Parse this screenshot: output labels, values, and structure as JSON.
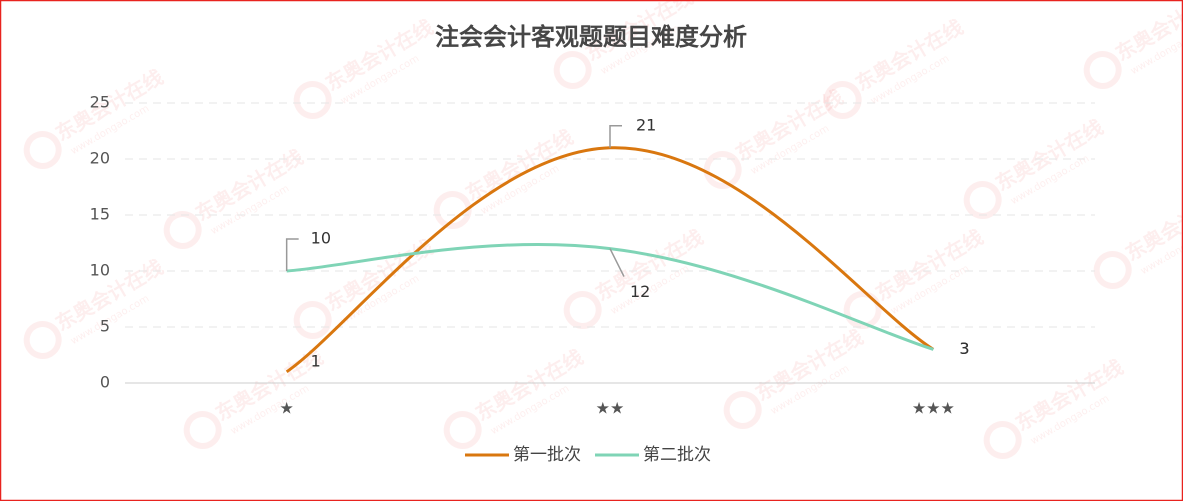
{
  "chart_data": {
    "type": "line",
    "title": "注会会计客观题题目难度分析",
    "categories": [
      "★",
      "★★",
      "★★★"
    ],
    "series": [
      {
        "name": "第一批次",
        "color": "#d9770f",
        "values": [
          1,
          21,
          3
        ]
      },
      {
        "name": "第二批次",
        "color": "#7fd4b6",
        "values": [
          10,
          12,
          3
        ]
      }
    ],
    "ylim": [
      0,
      25
    ],
    "yticks": [
      0,
      5,
      10,
      15,
      20,
      25
    ],
    "grid": true,
    "smooth": true,
    "legend": "bottom",
    "watermark": {
      "brand": "东奥会计在线",
      "url": "www.dongao.com"
    }
  }
}
